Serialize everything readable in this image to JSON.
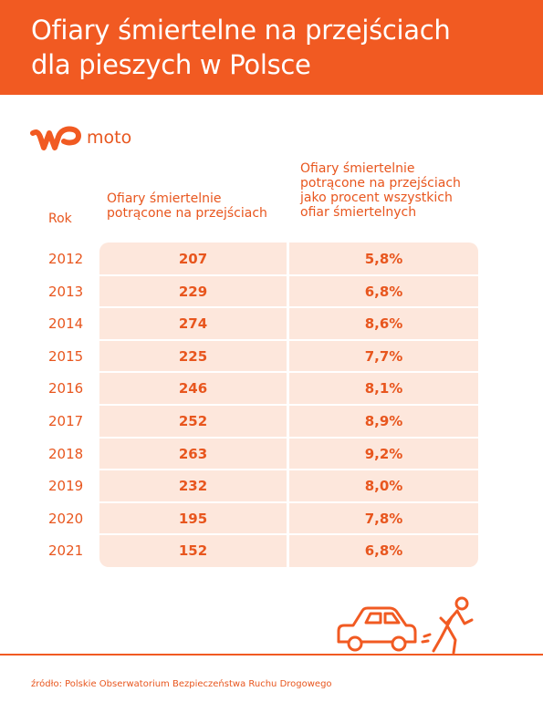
{
  "title": {
    "line1": "Ofiary śmiertelne na przejściach",
    "line2": "dla pieszych w Polsce"
  },
  "logo": {
    "text": "moto",
    "icon": "wp-logo"
  },
  "colors": {
    "accent": "#f15a22",
    "cell_bg": "#fde7dc",
    "text": "#e8561e"
  },
  "chart_data": {
    "type": "table",
    "title": "Ofiary śmiertelne na przejściach dla pieszych w Polsce",
    "columns": [
      "Rok",
      "Ofiary śmiertelnie potrącone na przejściach",
      "Ofiary śmiertelnie potrącone na przejściach jako procent wszystkich ofiar śmiertelnych"
    ],
    "rows": [
      {
        "year": "2012",
        "victims": "207",
        "percent": "5,8%"
      },
      {
        "year": "2013",
        "victims": "229",
        "percent": "6,8%"
      },
      {
        "year": "2014",
        "victims": "274",
        "percent": "8,6%"
      },
      {
        "year": "2015",
        "victims": "225",
        "percent": "7,7%"
      },
      {
        "year": "2016",
        "victims": "246",
        "percent": "8,1%"
      },
      {
        "year": "2017",
        "victims": "252",
        "percent": "8,9%"
      },
      {
        "year": "2018",
        "victims": "263",
        "percent": "9,2%"
      },
      {
        "year": "2019",
        "victims": "232",
        "percent": "8,0%"
      },
      {
        "year": "2020",
        "victims": "195",
        "percent": "7,8%"
      },
      {
        "year": "2021",
        "victims": "152",
        "percent": "6,8%"
      }
    ]
  },
  "headers": {
    "year": "Rok",
    "victims_l1": "Ofiary śmiertelnie",
    "victims_l2": "potrącone na przejściach",
    "pct_l1": "Ofiary śmiertelnie",
    "pct_l2": "potrącone na przejściach",
    "pct_l3": "jako procent wszystkich",
    "pct_l4": "ofiar śmiertelnych"
  },
  "illustration": {
    "icons": [
      "car-icon",
      "pedestrian-icon"
    ]
  },
  "source": "źródło: Polskie Obserwatorium Bezpieczeństwa Ruchu Drogowego"
}
